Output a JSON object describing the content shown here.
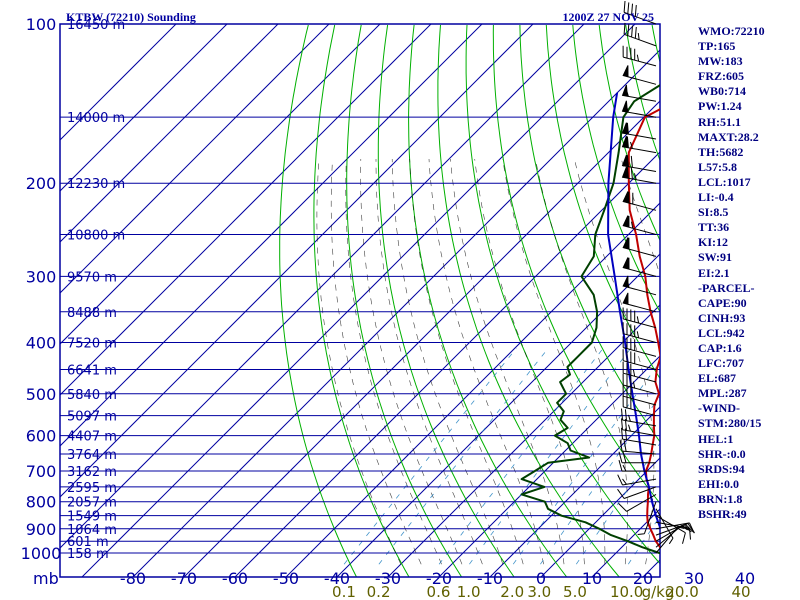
{
  "chart_data": {
    "type": "skew-t",
    "title": "KTBW (72210) Sounding",
    "time": "1200Z 27 NOV 25",
    "station": "KTBW",
    "station_id": "72210",
    "pressure_levels_mb": [
      100,
      200,
      300,
      400,
      500,
      600,
      700,
      800,
      900,
      1000
    ],
    "pressure_axis_label": "mb",
    "height_labels": [
      {
        "p": 100,
        "label": "16450 m"
      },
      {
        "p": 150,
        "label": "14000 m"
      },
      {
        "p": 200,
        "label": "12230 m"
      },
      {
        "p": 250,
        "label": "10800 m"
      },
      {
        "p": 300,
        "label": "9570 m"
      },
      {
        "p": 350,
        "label": "8488 m"
      },
      {
        "p": 400,
        "label": "7520 m"
      },
      {
        "p": 450,
        "label": "6641 m"
      },
      {
        "p": 500,
        "label": "5840 m"
      },
      {
        "p": 550,
        "label": "5097 m"
      },
      {
        "p": 600,
        "label": "4407 m"
      },
      {
        "p": 650,
        "label": "3764 m"
      },
      {
        "p": 700,
        "label": "3162 m"
      },
      {
        "p": 750,
        "label": "2595 m"
      },
      {
        "p": 800,
        "label": "2057 m"
      },
      {
        "p": 850,
        "label": "1549 m"
      },
      {
        "p": 900,
        "label": "1064 m"
      },
      {
        "p": 950,
        "label": "601 m"
      },
      {
        "p": 1000,
        "label": "158 m"
      }
    ],
    "temperature_ticks_c": [
      -80,
      -70,
      -60,
      -50,
      -40,
      -30,
      -20,
      -10,
      0,
      10,
      20,
      30,
      40
    ],
    "mixing_ratio_labels": [
      {
        "v": 0.1,
        "label": "0.1"
      },
      {
        "v": 0.2,
        "label": "0.2"
      },
      {
        "v": 0.6,
        "label": "0.6"
      },
      {
        "v": 1.0,
        "label": "1.0"
      },
      {
        "v": 2.0,
        "label": "2.0"
      },
      {
        "v": 3.0,
        "label": "3.0"
      },
      {
        "v": 5.0,
        "label": "5.0"
      },
      {
        "v": 10.0,
        "label": "10.0"
      },
      {
        "v": 20.0,
        "label": "20.0"
      },
      {
        "v": 40.0,
        "label": "40"
      }
    ],
    "mixing_ratio_unit": "g/kg",
    "temperature_profile": [
      {
        "p": 1010,
        "t": 21.5
      },
      {
        "p": 1000,
        "t": 19.5
      },
      {
        "p": 975,
        "t": 17.5
      },
      {
        "p": 950,
        "t": 15.5
      },
      {
        "p": 925,
        "t": 13.8
      },
      {
        "p": 900,
        "t": 12.0
      },
      {
        "p": 875,
        "t": 10.2
      },
      {
        "p": 850,
        "t": 8.8
      },
      {
        "p": 825,
        "t": 7.5
      },
      {
        "p": 800,
        "t": 6.2
      },
      {
        "p": 775,
        "t": 4.8
      },
      {
        "p": 750,
        "t": 3.5
      },
      {
        "p": 725,
        "t": 1.5
      },
      {
        "p": 700,
        "t": -0.2
      },
      {
        "p": 675,
        "t": -1.2
      },
      {
        "p": 650,
        "t": -2.5
      },
      {
        "p": 625,
        "t": -4.0
      },
      {
        "p": 600,
        "t": -5.5
      },
      {
        "p": 575,
        "t": -7.5
      },
      {
        "p": 550,
        "t": -9.5
      },
      {
        "p": 525,
        "t": -11.5
      },
      {
        "p": 500,
        "t": -12.8
      },
      {
        "p": 475,
        "t": -15.8
      },
      {
        "p": 450,
        "t": -18.0
      },
      {
        "p": 425,
        "t": -19.8
      },
      {
        "p": 400,
        "t": -23.0
      },
      {
        "p": 375,
        "t": -26.5
      },
      {
        "p": 350,
        "t": -30.5
      },
      {
        "p": 325,
        "t": -34.5
      },
      {
        "p": 300,
        "t": -38.5
      },
      {
        "p": 275,
        "t": -43.5
      },
      {
        "p": 250,
        "t": -48.5
      },
      {
        "p": 225,
        "t": -54.5
      },
      {
        "p": 200,
        "t": -60.0
      },
      {
        "p": 175,
        "t": -66.0
      },
      {
        "p": 150,
        "t": -69.8
      },
      {
        "p": 140,
        "t": -67.0
      },
      {
        "p": 130,
        "t": -69.0
      },
      {
        "p": 120,
        "t": -70.5
      },
      {
        "p": 110,
        "t": -72.0
      },
      {
        "p": 100,
        "t": -71.5
      }
    ],
    "dewpoint_profile": [
      {
        "p": 1010,
        "t": 20.0
      },
      {
        "p": 1000,
        "t": 18.5
      },
      {
        "p": 975,
        "t": 14.0
      },
      {
        "p": 950,
        "t": 10.0
      },
      {
        "p": 925,
        "t": 5.5
      },
      {
        "p": 900,
        "t": 2.0
      },
      {
        "p": 875,
        "t": -2.0
      },
      {
        "p": 850,
        "t": -8.0
      },
      {
        "p": 825,
        "t": -12.0
      },
      {
        "p": 800,
        "t": -14.0
      },
      {
        "p": 775,
        "t": -20.0
      },
      {
        "p": 750,
        "t": -17.0
      },
      {
        "p": 725,
        "t": -23.0
      },
      {
        "p": 700,
        "t": -22.0
      },
      {
        "p": 675,
        "t": -21.0
      },
      {
        "p": 660,
        "t": -14.0
      },
      {
        "p": 640,
        "t": -19.0
      },
      {
        "p": 620,
        "t": -21.0
      },
      {
        "p": 600,
        "t": -25.0
      },
      {
        "p": 580,
        "t": -24.0
      },
      {
        "p": 560,
        "t": -27.0
      },
      {
        "p": 540,
        "t": -28.0
      },
      {
        "p": 520,
        "t": -31.0
      },
      {
        "p": 500,
        "t": -31.0
      },
      {
        "p": 475,
        "t": -34.5
      },
      {
        "p": 460,
        "t": -34.0
      },
      {
        "p": 445,
        "t": -36.0
      },
      {
        "p": 425,
        "t": -36.0
      },
      {
        "p": 400,
        "t": -36.0
      },
      {
        "p": 375,
        "t": -38.0
      },
      {
        "p": 350,
        "t": -41.0
      },
      {
        "p": 325,
        "t": -45.0
      },
      {
        "p": 300,
        "t": -51.0
      },
      {
        "p": 275,
        "t": -52.5
      },
      {
        "p": 250,
        "t": -56.5
      },
      {
        "p": 225,
        "t": -59.5
      },
      {
        "p": 200,
        "t": -63.0
      },
      {
        "p": 175,
        "t": -68.0
      },
      {
        "p": 150,
        "t": -74.0
      },
      {
        "p": 140,
        "t": -75.0
      },
      {
        "p": 130,
        "t": -73.0
      },
      {
        "p": 120,
        "t": -75.0
      },
      {
        "p": 110,
        "t": -79.0
      },
      {
        "p": 100,
        "t": -79.0
      }
    ],
    "parcel_profile": [
      {
        "p": 1000,
        "t": 22.0
      },
      {
        "p": 942,
        "t": 16.5
      },
      {
        "p": 900,
        "t": 14.0
      },
      {
        "p": 850,
        "t": 10.5
      },
      {
        "p": 800,
        "t": 7.0
      },
      {
        "p": 750,
        "t": 3.5
      },
      {
        "p": 700,
        "t": -0.5
      },
      {
        "p": 650,
        "t": -4.5
      },
      {
        "p": 600,
        "t": -8.5
      },
      {
        "p": 550,
        "t": -13.0
      },
      {
        "p": 500,
        "t": -18.0
      },
      {
        "p": 450,
        "t": -23.5
      },
      {
        "p": 400,
        "t": -29.5
      },
      {
        "p": 350,
        "t": -36.5
      },
      {
        "p": 300,
        "t": -44.5
      },
      {
        "p": 250,
        "t": -54.0
      },
      {
        "p": 200,
        "t": -64.0
      },
      {
        "p": 150,
        "t": -76.0
      },
      {
        "p": 135,
        "t": -80.0
      }
    ],
    "wind_barbs": [
      {
        "p": 1000,
        "dir": 40,
        "spd": 5
      },
      {
        "p": 975,
        "dir": 50,
        "spd": 10
      },
      {
        "p": 950,
        "dir": 60,
        "spd": 15
      },
      {
        "p": 925,
        "dir": 70,
        "spd": 15
      },
      {
        "p": 900,
        "dir": 80,
        "spd": 10
      },
      {
        "p": 875,
        "dir": 100,
        "spd": 10
      },
      {
        "p": 850,
        "dir": 120,
        "spd": 10
      },
      {
        "p": 825,
        "dir": 150,
        "spd": 5
      },
      {
        "p": 800,
        "dir": 200,
        "spd": 5
      },
      {
        "p": 775,
        "dir": 240,
        "spd": 10
      },
      {
        "p": 750,
        "dir": 250,
        "spd": 10
      },
      {
        "p": 725,
        "dir": 260,
        "spd": 15
      },
      {
        "p": 700,
        "dir": 270,
        "spd": 15
      },
      {
        "p": 675,
        "dir": 270,
        "spd": 20
      },
      {
        "p": 650,
        "dir": 275,
        "spd": 20
      },
      {
        "p": 625,
        "dir": 280,
        "spd": 20
      },
      {
        "p": 600,
        "dir": 280,
        "spd": 25
      },
      {
        "p": 575,
        "dir": 280,
        "spd": 25
      },
      {
        "p": 550,
        "dir": 285,
        "spd": 30
      },
      {
        "p": 525,
        "dir": 285,
        "spd": 30
      },
      {
        "p": 500,
        "dir": 285,
        "spd": 35
      },
      {
        "p": 475,
        "dir": 285,
        "spd": 35
      },
      {
        "p": 450,
        "dir": 285,
        "spd": 40
      },
      {
        "p": 425,
        "dir": 285,
        "spd": 40
      },
      {
        "p": 400,
        "dir": 285,
        "spd": 45
      },
      {
        "p": 375,
        "dir": 285,
        "spd": 45
      },
      {
        "p": 350,
        "dir": 285,
        "spd": 50
      },
      {
        "p": 325,
        "dir": 285,
        "spd": 55
      },
      {
        "p": 300,
        "dir": 285,
        "spd": 60
      },
      {
        "p": 275,
        "dir": 285,
        "spd": 60
      },
      {
        "p": 250,
        "dir": 285,
        "spd": 65
      },
      {
        "p": 225,
        "dir": 285,
        "spd": 70
      },
      {
        "p": 200,
        "dir": 280,
        "spd": 75
      },
      {
        "p": 190,
        "dir": 280,
        "spd": 70
      },
      {
        "p": 175,
        "dir": 280,
        "spd": 65
      },
      {
        "p": 165,
        "dir": 280,
        "spd": 60
      },
      {
        "p": 150,
        "dir": 280,
        "spd": 55
      },
      {
        "p": 140,
        "dir": 280,
        "spd": 55
      },
      {
        "p": 130,
        "dir": 285,
        "spd": 50
      },
      {
        "p": 120,
        "dir": 285,
        "spd": 45
      },
      {
        "p": 110,
        "dir": 290,
        "spd": 45
      },
      {
        "p": 100,
        "dir": 290,
        "spd": 40
      }
    ],
    "colors": {
      "frame": "#0000a0",
      "isobar": "#0000a0",
      "isotherm": "#0000a0",
      "dry_adiabat": "#00b000",
      "moist_adiabat": "#000000",
      "mixing_ratio": "#2080c0",
      "temperature": "#c00000",
      "dewpoint": "#004000",
      "parcel": "#0000c0",
      "axis_text": "#0000a0",
      "mixing_text": "#606000",
      "barb": "#000000"
    }
  },
  "indices": [
    "WMO:72210",
    "TP:165",
    "MW:183",
    "FRZ:605",
    "WB0:714",
    "PW:1.24",
    "RH:51.1",
    "MAXT:28.2",
    "TH:5682",
    "L57:5.8",
    "LCL:1017",
    "LI:-0.4",
    "SI:8.5",
    "TT:36",
    "KI:12",
    "SW:91",
    "EI:2.1",
    "-PARCEL-",
    "CAPE:90",
    "CINH:93",
    "LCL:942",
    "CAP:1.6",
    "LFC:707",
    "EL:687",
    "MPL:287",
    "-WIND-",
    "STM:280/15",
    "HEL:1",
    "SHR-:0.0",
    "SRDS:94",
    "EHI:0.0",
    "BRN:1.8",
    "BSHR:49"
  ]
}
